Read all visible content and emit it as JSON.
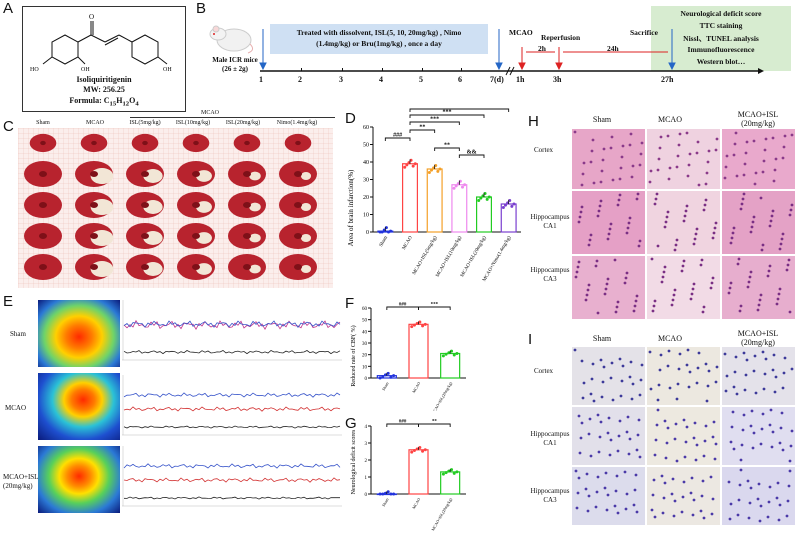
{
  "labels": {
    "A": "A",
    "B": "B",
    "C": "C",
    "D": "D",
    "E": "E",
    "F": "F",
    "G": "G",
    "H": "H",
    "I": "I"
  },
  "panelA": {
    "name": "Isoliquiritigenin",
    "mw": "MW: 256.25",
    "formula_prefix": "Formula: C",
    "c": "15",
    "h_prefix": "H",
    "h": "12",
    "o_prefix": "O",
    "o": "4",
    "atom_o": "O",
    "atom_ho": "HO",
    "atom_oh": "OH",
    "atom_oh2": "OH"
  },
  "panelB": {
    "mouse_label": "Male ICR mice",
    "mouse_weight": "(26 ± 2g)",
    "treatment_line1": "Treated with dissolvent, ISL(5, 10, 20mg/kg) , Nimo",
    "treatment_line2": "(1.4mg/kg)  or Bru(1mg/kg) , once a day",
    "days": [
      "1",
      "2",
      "3",
      "4",
      "5",
      "6",
      "7(d)"
    ],
    "mcao": "MCAO",
    "reperfusion": "Reperfusion",
    "sacrifice": "Sacrifice",
    "h2": "2h",
    "h24": "24h",
    "t1": "1h",
    "t3": "3h",
    "t27": "27h",
    "outcomes": [
      "Neurological deficit score",
      "TTC staining",
      "Nissl、TUNEL analysis",
      "Immunofluorescence",
      "Western blot…"
    ]
  },
  "panelC": {
    "group_header": "MCAO",
    "groups": [
      "Sham",
      "MCAO",
      "ISL(5mg/kg)",
      "ISL(10mg/kg)",
      "ISL(20mg/kg)",
      "Nimo(1.4mg/kg)"
    ]
  },
  "panelE": {
    "rows": [
      "Sham",
      "MCAO",
      "MCAO+ISL",
      "(20mg/kg)"
    ]
  },
  "panelH": {
    "cols": [
      "Sham",
      "MCAO",
      "MCAO+ISL",
      "(20mg/kg)"
    ],
    "rows": [
      "Cortex",
      "Hippocampus",
      "CA1",
      "Hippocampus",
      "CA3"
    ]
  },
  "panelI": {
    "cols": [
      "Sham",
      "MCAO",
      "MCAO+ISL",
      "(20mg/kg)"
    ],
    "rows": [
      "Cortex",
      "Hippocampus",
      "CA1",
      "Hippocampus",
      "CA3"
    ]
  },
  "chart_data": [
    {
      "id": "D",
      "type": "bar",
      "ylabel": "Area of brain infarction(%)",
      "ylim": [
        0,
        60
      ],
      "yticks": [
        "0",
        "10",
        "20",
        "30",
        "40",
        "50",
        "60"
      ],
      "categories": [
        "Sham",
        "MCAO",
        "MCAO+ISL(5mg/kg)",
        "MCAO+ISL(10mg/kg)",
        "MCAO+ISL(20mg/kg)",
        "MCAO+Nimo(1.4mg/kg)"
      ],
      "values": [
        0.5,
        39,
        36,
        27,
        20,
        16
      ],
      "colors": [
        "#2233dd",
        "#ff4444",
        "#f4a028",
        "#ee88ee",
        "#22cc22",
        "#7a3fcf"
      ],
      "sig": [
        "###",
        "**",
        "***",
        "***",
        "***",
        "**",
        "&&"
      ]
    },
    {
      "id": "F",
      "type": "bar",
      "ylabel": "Reduced rate of CBF( %)",
      "ylim": [
        0,
        60
      ],
      "yticks": [
        "0",
        "10",
        "20",
        "30",
        "40",
        "50",
        "60"
      ],
      "categories": [
        "Sham",
        "MCAO",
        "MCAO+ISL(20mg/kg)"
      ],
      "values": [
        2,
        46,
        21
      ],
      "colors": [
        "#2233dd",
        "#ff4444",
        "#22cc22"
      ],
      "sig": [
        "###",
        "***"
      ]
    },
    {
      "id": "G",
      "type": "bar",
      "ylabel": "Neurological deficit scores",
      "ylim": [
        0,
        4
      ],
      "yticks": [
        "0",
        "1",
        "2",
        "3",
        "4"
      ],
      "categories": [
        "Sham",
        "MCAO",
        "MCAO+ISL(20mg/kg)"
      ],
      "values": [
        0,
        2.6,
        1.3
      ],
      "colors": [
        "#2233dd",
        "#ff4444",
        "#22cc22"
      ],
      "sig": [
        "###",
        "**"
      ]
    }
  ]
}
